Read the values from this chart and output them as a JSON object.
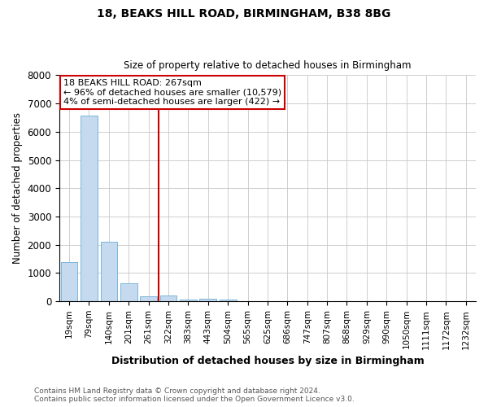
{
  "title1": "18, BEAKS HILL ROAD, BIRMINGHAM, B38 8BG",
  "title2": "Size of property relative to detached houses in Birmingham",
  "xlabel": "Distribution of detached houses by size in Birmingham",
  "ylabel": "Number of detached properties",
  "footnote1": "Contains HM Land Registry data © Crown copyright and database right 2024.",
  "footnote2": "Contains public sector information licensed under the Open Government Licence v3.0.",
  "annotation_line1": "18 BEAKS HILL ROAD: 267sqm",
  "annotation_line2": "← 96% of detached houses are smaller (10,579)",
  "annotation_line3": "4% of semi-detached houses are larger (422) →",
  "bar_color": "#c5d9ef",
  "bar_edge_color": "#6baed6",
  "vline_color": "#cc0000",
  "annotation_box_edgecolor": "#cc0000",
  "background_color": "#ffffff",
  "grid_color": "#c8c8c8",
  "categories": [
    "19sqm",
    "79sqm",
    "140sqm",
    "201sqm",
    "261sqm",
    "322sqm",
    "383sqm",
    "443sqm",
    "504sqm",
    "565sqm",
    "625sqm",
    "686sqm",
    "747sqm",
    "807sqm",
    "868sqm",
    "929sqm",
    "990sqm",
    "1050sqm",
    "1111sqm",
    "1172sqm",
    "1232sqm"
  ],
  "values": [
    1390,
    6580,
    2100,
    650,
    190,
    200,
    70,
    100,
    60,
    10,
    0,
    0,
    0,
    0,
    0,
    0,
    0,
    0,
    0,
    0,
    0
  ],
  "vline_x": 4.5,
  "ylim": [
    0,
    8000
  ],
  "yticks": [
    0,
    1000,
    2000,
    3000,
    4000,
    5000,
    6000,
    7000,
    8000
  ]
}
